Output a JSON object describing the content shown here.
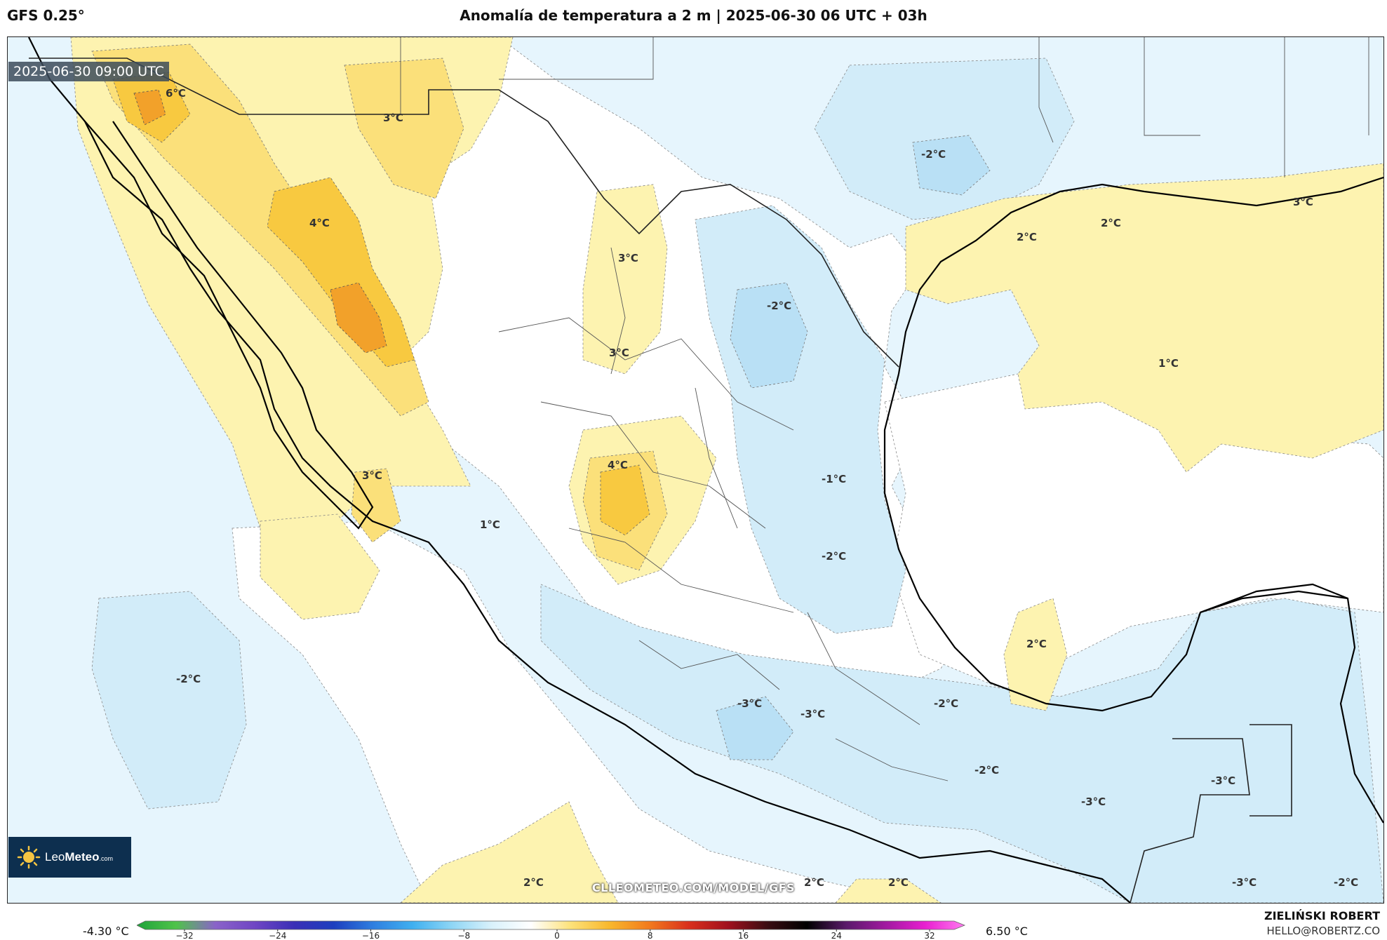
{
  "header": {
    "model": "GFS 0.25°",
    "title": "Anomalía de temperatura a 2 m | 2025-06-30 06 UTC + 03h"
  },
  "map": {
    "valid_time": "2025-06-30 09:00 UTC",
    "watermark": "CLLEOMETEO.COM/MODEL/GFS",
    "contour_labels": [
      "6°C",
      "3°C",
      "4°C",
      "3°C",
      "3°C",
      "4°C",
      "3°C",
      "1°C",
      "-2°C",
      "-2°C",
      "2°C",
      "2°C",
      "3°C",
      "1°C",
      "-1°C",
      "-2°C",
      "-2°C",
      "2°C",
      "-3°C",
      "-3°C",
      "-2°C",
      "-2°C",
      "-3°C",
      "-3°C",
      "2°C",
      "2°C",
      "2°C",
      "-3°C",
      "-2°C"
    ],
    "colors": {
      "ocean_cool": "#e6f5fd",
      "cool": "#d2ecf9",
      "cooler": "#b9e0f5",
      "neutral": "#ffffff",
      "warm": "#fdf3b0",
      "warmer": "#fbe07a",
      "hot": "#f8c940",
      "hotter": "#f2a12a",
      "coast": "#000000",
      "border": "#555555"
    }
  },
  "logo": {
    "brand_light": "Leo",
    "brand_bold": "Meteo",
    "brand_suffix": ".com"
  },
  "colorbar": {
    "min_label": "-4.30 °C",
    "max_label": "6.50 °C",
    "ticks": [
      "−32",
      "−24",
      "−16",
      "−8",
      "0",
      "8",
      "16",
      "24",
      "32"
    ],
    "stops": [
      "#1fa33a",
      "#4fc34a",
      "#8a63c9",
      "#6f45c4",
      "#3a2fb6",
      "#1d3fbf",
      "#2f7fe0",
      "#3fb0f0",
      "#8fd6f5",
      "#d9f1fb",
      "#ffffff",
      "#fde27a",
      "#f8b72c",
      "#f27a1d",
      "#d9301d",
      "#a0101d",
      "#3a0d12",
      "#000000",
      "#5a1a6a",
      "#a11aa0",
      "#e81fd0",
      "#ff7af0"
    ]
  },
  "credit": {
    "name": "ZIELIŃSKI ROBERT",
    "email": "HELLO@ROBERTZ.CO"
  }
}
